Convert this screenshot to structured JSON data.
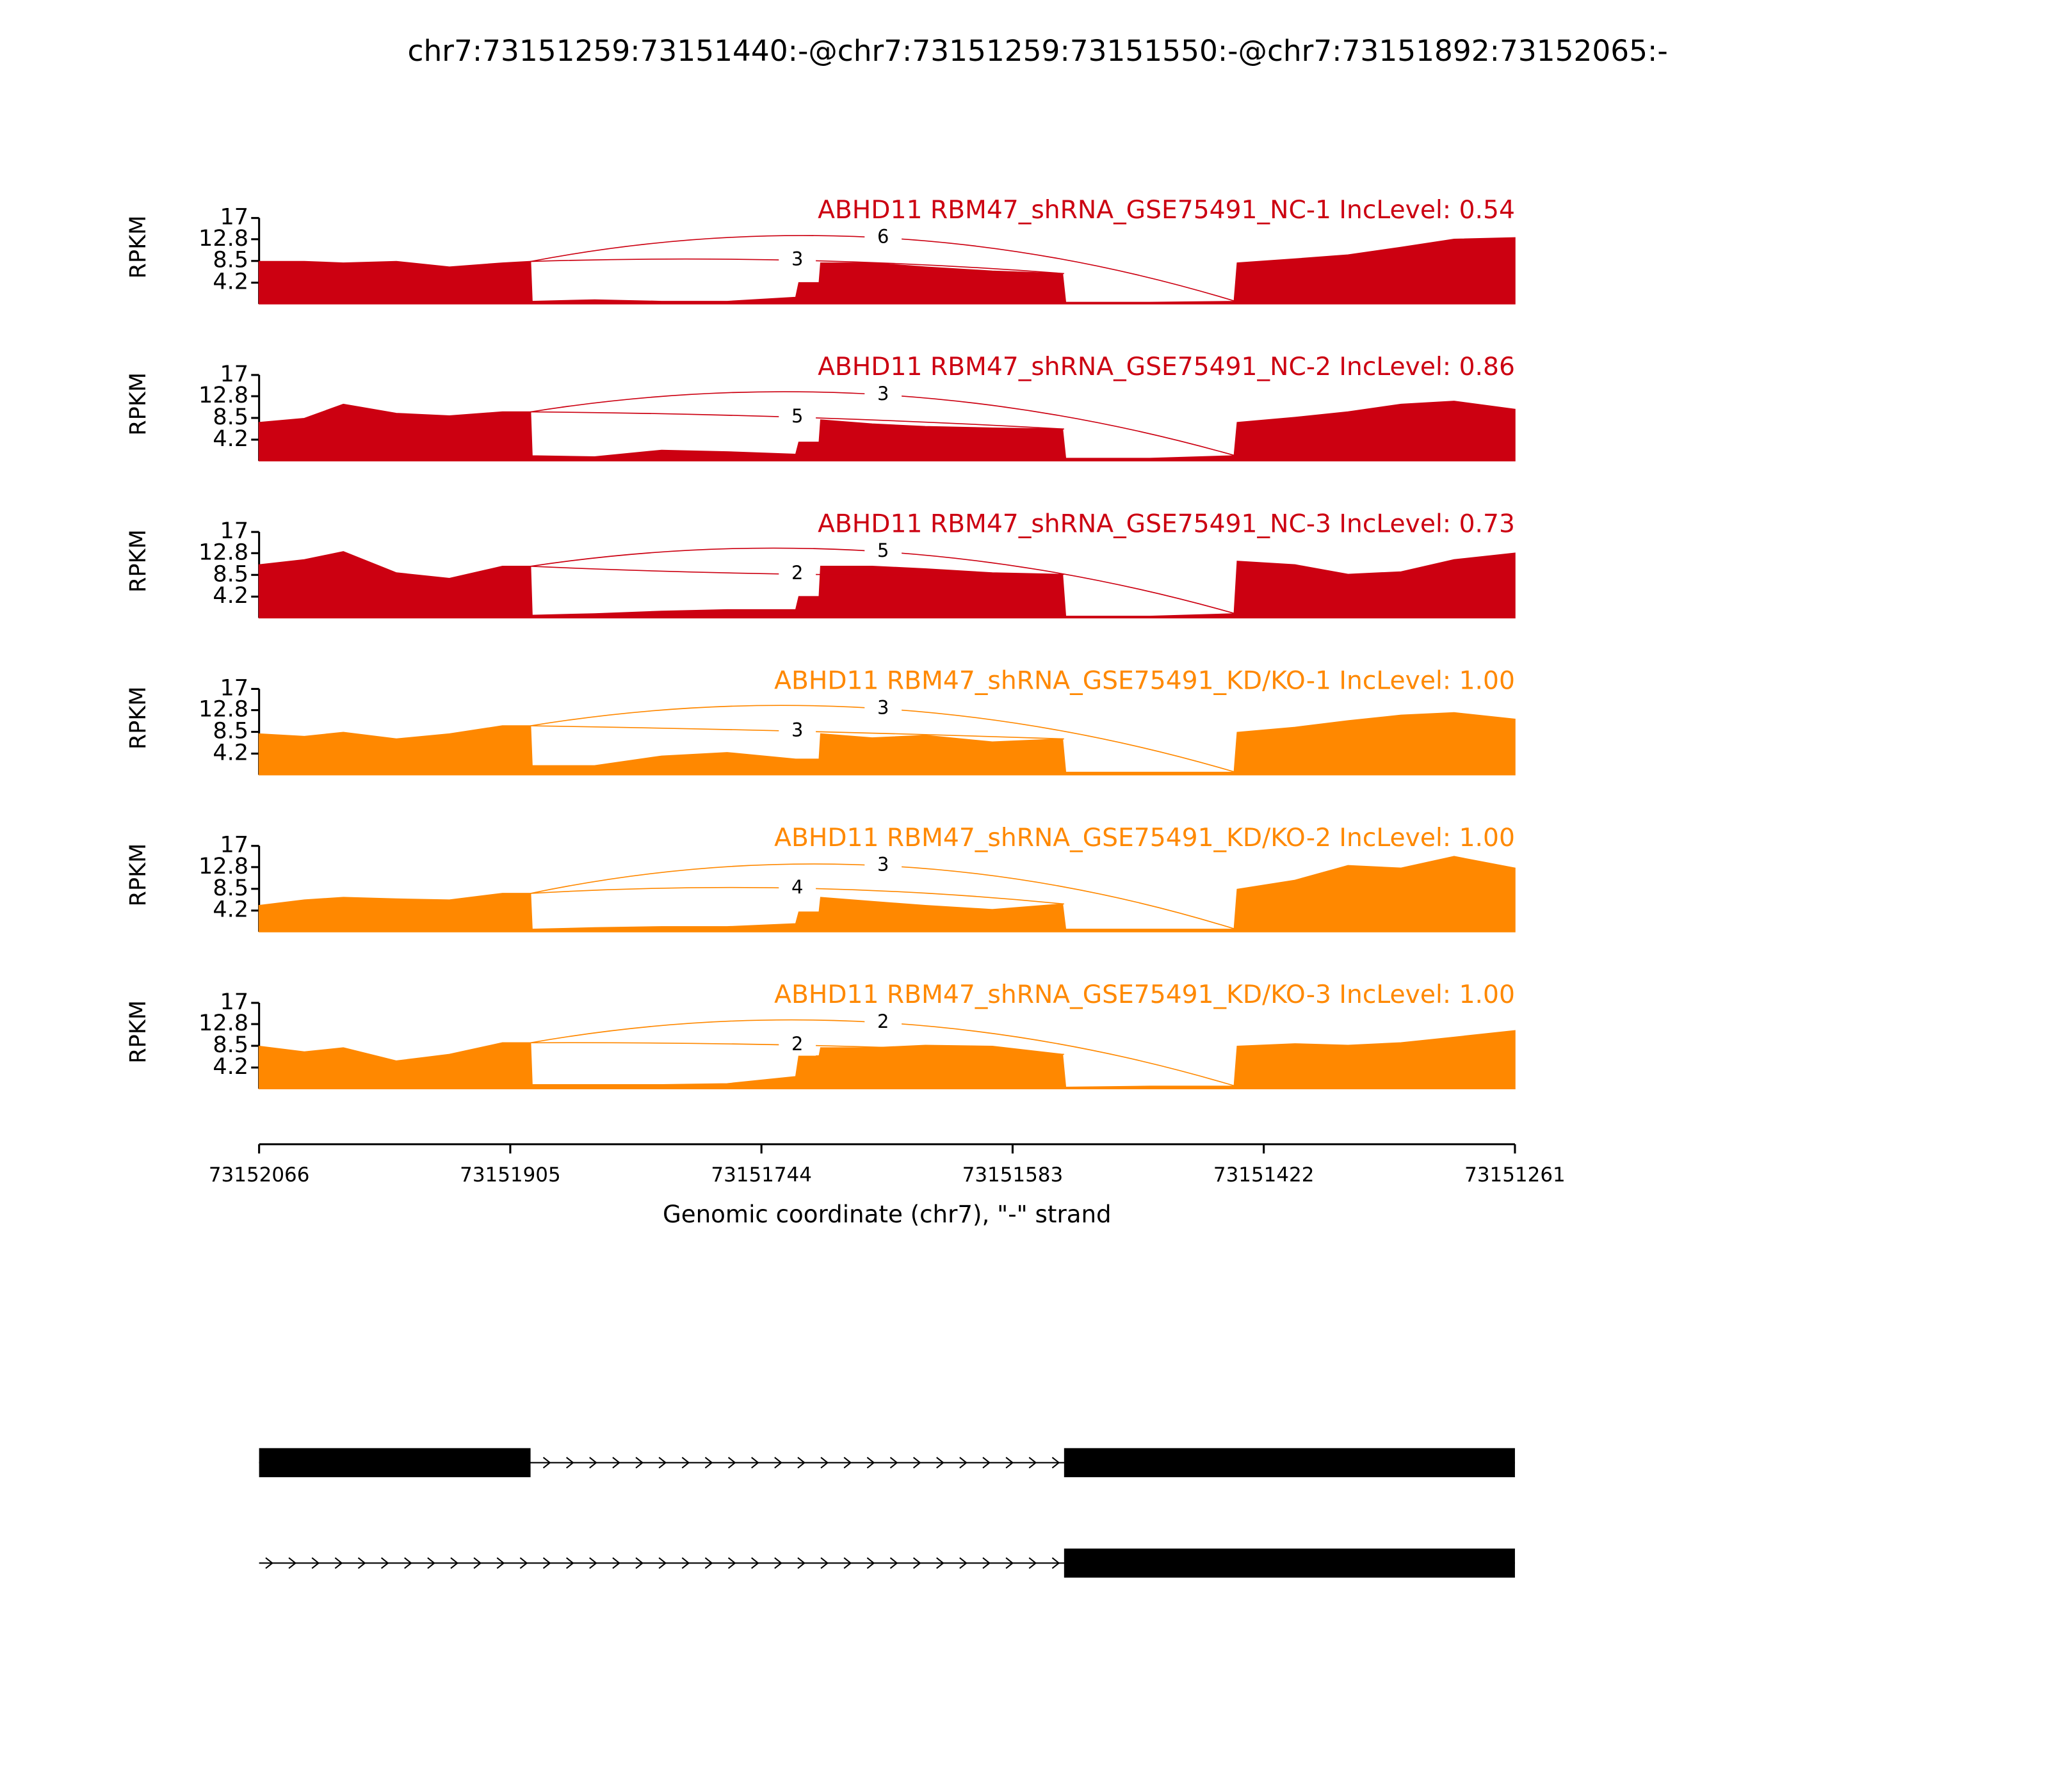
{
  "chart_data": {
    "type": "sashimi",
    "title": "chr7:73151259:73151440:-@chr7:73151259:73151550:-@chr7:73151892:73152065:-",
    "xlabel": "Genomic coordinate (chr7), \"-\" strand",
    "xlim": [
      73152066,
      73151261
    ],
    "xticks": [
      73152066,
      73151905,
      73151744,
      73151583,
      73151422,
      73151261
    ],
    "ylabel": "RPKM",
    "ylim": [
      0,
      17
    ],
    "yticks": [
      4.2,
      8.5,
      12.8,
      17
    ],
    "x": [
      73152066,
      73152037,
      73152012,
      73151978,
      73151944,
      73151910,
      73151892,
      73151891,
      73151851,
      73151808,
      73151766,
      73151722,
      73151720,
      73151707,
      73151706,
      73151673,
      73151639,
      73151596,
      73151551,
      73151549,
      73151495,
      73151441,
      73151439,
      73151402,
      73151368,
      73151334,
      73151300,
      73151261
    ],
    "series": [
      {
        "name": "ABHD11 RBM47_shRNA_GSE75491_NC-1 IncLevel: 0.54",
        "color": "#cc0011",
        "values": [
          8.4,
          8.4,
          8.1,
          8.4,
          7.3,
          8.1,
          8.4,
          0.5,
          0.8,
          0.5,
          0.5,
          1.3,
          4.2,
          4.2,
          8.1,
          8.1,
          7.3,
          6.5,
          6.0,
          0.3,
          0.3,
          0.5,
          8.1,
          8.9,
          9.7,
          11.2,
          12.8,
          13.1
        ],
        "junctions": [
          {
            "start": 73151892,
            "end": 73151440,
            "count": 6
          },
          {
            "start": 73151892,
            "end": 73151550,
            "count": 3
          }
        ]
      },
      {
        "name": "ABHD11 RBM47_shRNA_GSE75491_NC-2 IncLevel: 0.86",
        "color": "#cc0011",
        "values": [
          7.6,
          8.4,
          11.2,
          9.4,
          8.9,
          9.7,
          9.7,
          1.0,
          0.8,
          2.1,
          1.8,
          1.3,
          3.7,
          3.7,
          8.1,
          7.3,
          6.8,
          6.5,
          6.3,
          0.5,
          0.5,
          1.0,
          7.6,
          8.6,
          9.7,
          11.2,
          11.8,
          10.2
        ],
        "junctions": [
          {
            "start": 73151892,
            "end": 73151440,
            "count": 3
          },
          {
            "start": 73151892,
            "end": 73151550,
            "count": 5
          }
        ]
      },
      {
        "name": "ABHD11 RBM47_shRNA_GSE75491_NC-3 IncLevel: 0.73",
        "color": "#cc0011",
        "values": [
          10.5,
          11.5,
          13.1,
          8.9,
          7.8,
          10.2,
          10.2,
          0.5,
          0.8,
          1.3,
          1.6,
          1.6,
          4.2,
          4.2,
          10.2,
          10.2,
          9.7,
          8.9,
          8.6,
          0.3,
          0.3,
          0.8,
          11.2,
          10.5,
          8.6,
          9.1,
          11.5,
          12.8
        ],
        "junctions": [
          {
            "start": 73151892,
            "end": 73151440,
            "count": 5
          },
          {
            "start": 73151892,
            "end": 73151550,
            "count": 2
          }
        ]
      },
      {
        "name": "ABHD11 RBM47_shRNA_GSE75491_KD/KO-1 IncLevel: 1.00",
        "color": "#ff8800",
        "values": [
          8.1,
          7.6,
          8.4,
          7.1,
          8.1,
          9.7,
          9.7,
          1.8,
          1.8,
          3.7,
          4.4,
          3.1,
          3.1,
          3.1,
          8.1,
          7.3,
          7.8,
          6.5,
          7.1,
          0.5,
          0.5,
          0.5,
          8.4,
          9.4,
          10.7,
          11.8,
          12.3,
          11.0
        ],
        "junctions": [
          {
            "start": 73151892,
            "end": 73151440,
            "count": 3
          },
          {
            "start": 73151892,
            "end": 73151550,
            "count": 3
          }
        ]
      },
      {
        "name": "ABHD11 RBM47_shRNA_GSE75491_KD/KO-2 IncLevel: 1.00",
        "color": "#ff8800",
        "values": [
          5.2,
          6.3,
          6.8,
          6.5,
          6.3,
          7.6,
          7.6,
          0.5,
          0.8,
          1.0,
          1.0,
          1.6,
          3.9,
          3.9,
          6.8,
          6.0,
          5.2,
          4.4,
          5.5,
          0.5,
          0.5,
          0.5,
          8.4,
          10.2,
          13.1,
          12.6,
          14.9,
          12.6
        ],
        "junctions": [
          {
            "start": 73151892,
            "end": 73151440,
            "count": 3
          },
          {
            "start": 73151892,
            "end": 73151550,
            "count": 4
          }
        ]
      },
      {
        "name": "ABHD11 RBM47_shRNA_GSE75491_KD/KO-3 IncLevel: 1.00",
        "color": "#ff8800",
        "values": [
          8.4,
          7.3,
          8.1,
          5.5,
          6.8,
          9.1,
          9.1,
          0.8,
          0.8,
          0.8,
          1.0,
          2.4,
          6.5,
          6.5,
          8.1,
          8.1,
          8.6,
          8.4,
          6.8,
          0.3,
          0.5,
          0.5,
          8.4,
          8.9,
          8.6,
          9.1,
          10.2,
          11.5
        ],
        "junctions": [
          {
            "start": 73151892,
            "end": 73151440,
            "count": 2
          },
          {
            "start": 73151892,
            "end": 73151550,
            "count": 2
          }
        ]
      }
    ],
    "transcripts": [
      {
        "start": 73152066,
        "end": 73151261,
        "exons": [
          [
            73152066,
            73151892
          ],
          [
            73151550,
            73151261
          ]
        ]
      },
      {
        "start": 73152066,
        "end": 73151261,
        "exons": [
          [
            73151550,
            73151261
          ]
        ]
      }
    ]
  }
}
